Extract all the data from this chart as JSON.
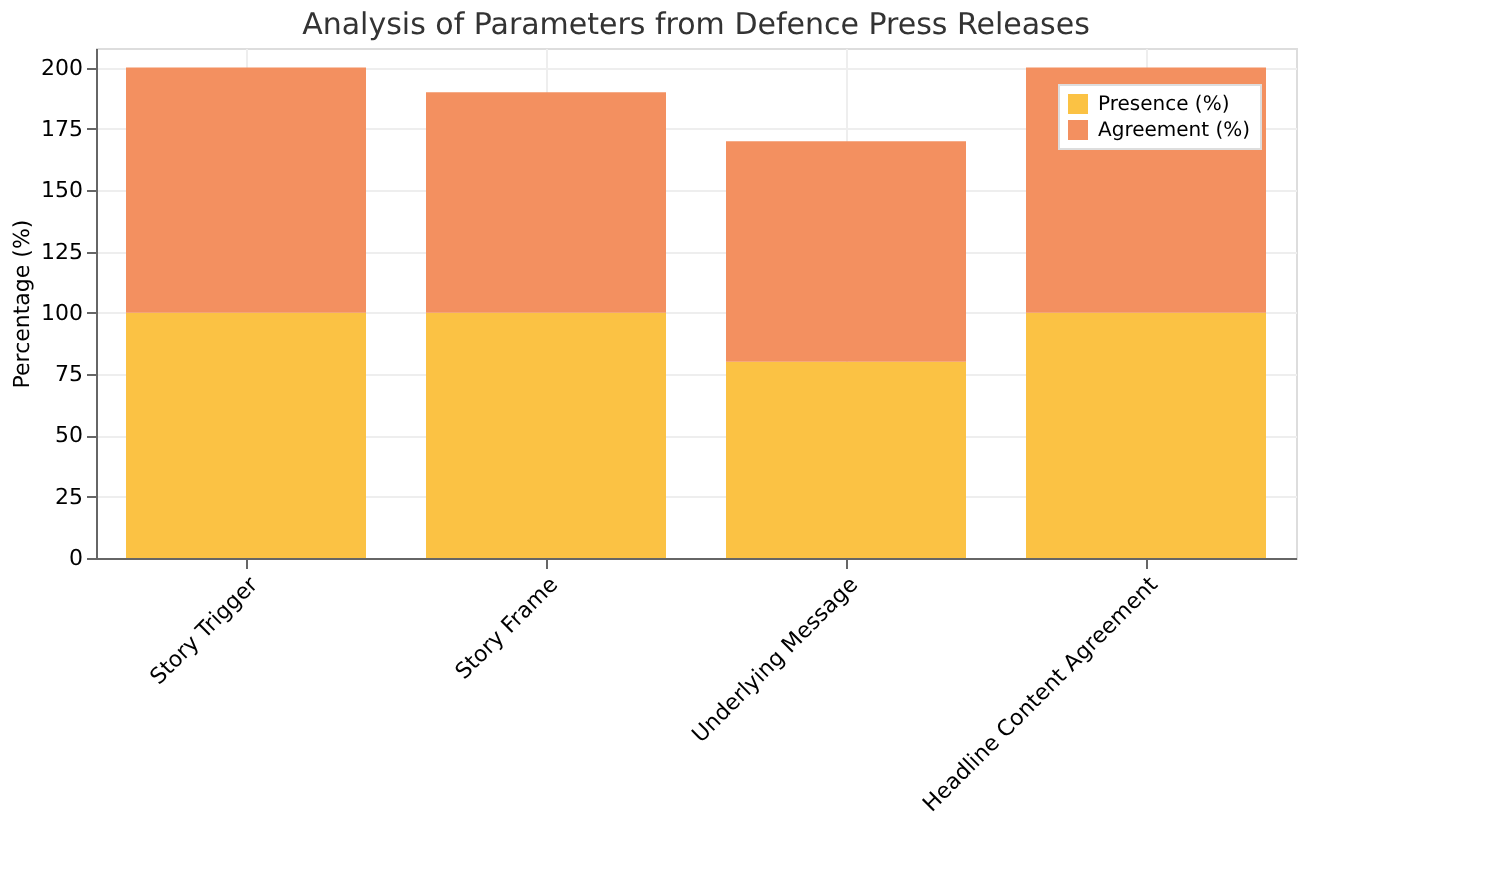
{
  "chart_data": {
    "type": "bar",
    "title": "Analysis of Parameters from Defence Press Releases",
    "ylabel": "Percentage (%)",
    "categories": [
      "Story Trigger",
      "Story Frame",
      "Underlying Message",
      "Headline Content Agreement"
    ],
    "stacked": true,
    "series": [
      {
        "name": "Presence (%)",
        "color": "#fbc244",
        "values": [
          100,
          100,
          80,
          100
        ]
      },
      {
        "name": "Agreement (%)",
        "color": "#f39060",
        "values": [
          100,
          90,
          90,
          100
        ]
      }
    ],
    "ylim": [
      0,
      208
    ],
    "yticks": [
      0,
      25,
      50,
      75,
      100,
      125,
      150,
      175,
      200
    ],
    "grid": true,
    "legend": "top right"
  }
}
